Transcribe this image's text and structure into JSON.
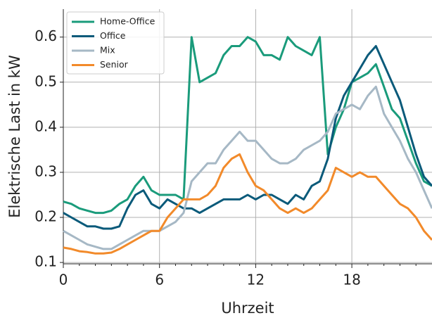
{
  "chart_data": {
    "type": "line",
    "xlabel": "Uhrzeit",
    "ylabel": "Elektrische Last in kW",
    "x": [
      0,
      0.5,
      1,
      1.5,
      2,
      2.5,
      3,
      3.5,
      4,
      4.5,
      5,
      5.5,
      6,
      6.5,
      7,
      7.5,
      8,
      8.5,
      9,
      9.5,
      10,
      10.5,
      11,
      11.5,
      12,
      12.5,
      13,
      13.5,
      14,
      14.5,
      15,
      15.5,
      16,
      16.5,
      17,
      17.5,
      18,
      18.5,
      19,
      19.5,
      20,
      20.5,
      21,
      21.5,
      22,
      22.5,
      23
    ],
    "series": [
      {
        "name": "Home-Office",
        "color": "#1a9b7b",
        "values": [
          0.235,
          0.23,
          0.22,
          0.215,
          0.21,
          0.21,
          0.215,
          0.23,
          0.24,
          0.27,
          0.29,
          0.26,
          0.25,
          0.25,
          0.25,
          0.24,
          0.6,
          0.5,
          0.51,
          0.52,
          0.56,
          0.58,
          0.58,
          0.6,
          0.59,
          0.56,
          0.56,
          0.55,
          0.6,
          0.58,
          0.57,
          0.56,
          0.6,
          0.34,
          0.4,
          0.44,
          0.5,
          0.51,
          0.52,
          0.54,
          0.49,
          0.44,
          0.42,
          0.37,
          0.32,
          0.28,
          0.27
        ]
      },
      {
        "name": "Office",
        "color": "#0a5a7a",
        "values": [
          0.21,
          0.2,
          0.19,
          0.18,
          0.18,
          0.175,
          0.175,
          0.18,
          0.22,
          0.25,
          0.26,
          0.23,
          0.22,
          0.24,
          0.23,
          0.22,
          0.22,
          0.21,
          0.22,
          0.23,
          0.24,
          0.24,
          0.24,
          0.25,
          0.24,
          0.25,
          0.25,
          0.24,
          0.23,
          0.25,
          0.24,
          0.27,
          0.28,
          0.33,
          0.42,
          0.47,
          0.5,
          0.53,
          0.56,
          0.58,
          0.54,
          0.5,
          0.46,
          0.4,
          0.34,
          0.29,
          0.27
        ]
      },
      {
        "name": "Mix",
        "color": "#a6b8c5",
        "values": [
          0.17,
          0.16,
          0.15,
          0.14,
          0.135,
          0.13,
          0.13,
          0.14,
          0.15,
          0.16,
          0.17,
          0.17,
          0.17,
          0.18,
          0.19,
          0.21,
          0.28,
          0.3,
          0.32,
          0.32,
          0.35,
          0.37,
          0.39,
          0.37,
          0.37,
          0.35,
          0.33,
          0.32,
          0.32,
          0.33,
          0.35,
          0.36,
          0.37,
          0.39,
          0.43,
          0.44,
          0.45,
          0.44,
          0.47,
          0.49,
          0.43,
          0.4,
          0.37,
          0.33,
          0.3,
          0.26,
          0.22
        ]
      },
      {
        "name": "Senior",
        "color": "#f28a2a",
        "values": [
          0.133,
          0.13,
          0.125,
          0.123,
          0.12,
          0.12,
          0.122,
          0.13,
          0.14,
          0.15,
          0.16,
          0.17,
          0.17,
          0.2,
          0.22,
          0.24,
          0.24,
          0.24,
          0.25,
          0.27,
          0.31,
          0.33,
          0.34,
          0.3,
          0.27,
          0.26,
          0.24,
          0.22,
          0.21,
          0.22,
          0.21,
          0.22,
          0.24,
          0.26,
          0.31,
          0.3,
          0.29,
          0.3,
          0.29,
          0.29,
          0.27,
          0.25,
          0.23,
          0.22,
          0.2,
          0.17,
          0.15
        ]
      }
    ],
    "xlim": [
      0,
      23
    ],
    "xticks": [
      0,
      6,
      12,
      18
    ],
    "xticks_minor": [
      1,
      2,
      3,
      4,
      5,
      7,
      8,
      9,
      10,
      11,
      13,
      14,
      15,
      16,
      17,
      19,
      20,
      21,
      22
    ],
    "ylim": [
      0.097,
      0.662
    ],
    "yticks": [
      0.1,
      0.2,
      0.3,
      0.4,
      0.5,
      0.6
    ],
    "grid": true,
    "legend": "upper left"
  }
}
